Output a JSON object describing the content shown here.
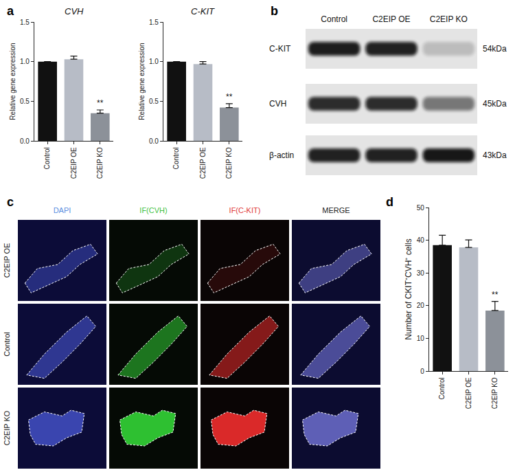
{
  "panel_labels": [
    "a",
    "b",
    "c",
    "d"
  ],
  "chart_data": [
    {
      "type": "bar",
      "title": "CVH",
      "ylabel": "Relative gene expression",
      "categories": [
        "Control",
        "C2EIP OE",
        "C2EIP KO"
      ],
      "values": [
        1.0,
        1.03,
        0.35
      ],
      "errors": [
        0,
        0.04,
        0.04
      ],
      "colors": [
        "#111111",
        "#b7bcc6",
        "#8c9199"
      ],
      "ylim": [
        0,
        1.5
      ],
      "yticks": [
        {
          "value": 0,
          "label": "0.0"
        },
        {
          "value": 0.5,
          "label": "0.5"
        },
        {
          "value": 1,
          "label": "1.0"
        },
        {
          "value": 1.5,
          "label": "1.5"
        }
      ],
      "grid": false,
      "annotations": [
        {
          "category": "C2EIP KO",
          "text": "**"
        }
      ]
    },
    {
      "type": "bar",
      "title": "C-KIT",
      "ylabel": "Relative gene expression",
      "categories": [
        "Control",
        "C2EIP OE",
        "C2EIP KO"
      ],
      "values": [
        1.0,
        0.97,
        0.42
      ],
      "errors": [
        0,
        0.03,
        0.05
      ],
      "colors": [
        "#111111",
        "#b7bcc6",
        "#8c9199"
      ],
      "ylim": [
        0,
        1.5
      ],
      "yticks": [
        {
          "value": 0,
          "label": "0.0"
        },
        {
          "value": 0.5,
          "label": "0.5"
        },
        {
          "value": 1,
          "label": "1.0"
        },
        {
          "value": 1.5,
          "label": "1.5"
        }
      ],
      "grid": false,
      "annotations": [
        {
          "category": "C2EIP KO",
          "text": "**"
        }
      ]
    },
    {
      "type": "bar",
      "ylabel": "Number of CKIT⁺CVH⁺ cells",
      "categories": [
        "Control",
        "C2EIP OE",
        "C2EIP KO"
      ],
      "values": [
        38.5,
        37.8,
        18.5
      ],
      "errors": [
        3.0,
        2.3,
        2.8
      ],
      "colors": [
        "#111111",
        "#b7bcc6",
        "#8c9199"
      ],
      "ylim": [
        0,
        50
      ],
      "yticks": [
        0,
        10,
        20,
        30,
        40,
        50
      ],
      "grid": false,
      "annotations": [
        {
          "category": "C2EIP KO",
          "text": "**"
        }
      ]
    }
  ],
  "western_blot": {
    "lanes": [
      "Control",
      "C2EIP OE",
      "C2EIP KO"
    ],
    "rows": [
      {
        "label": "C-KIT",
        "size": "54kDa"
      },
      {
        "label": "CVH",
        "size": "45kDa"
      },
      {
        "label": "β-actin",
        "size": "43kDa"
      }
    ]
  },
  "immunofluorescence": {
    "channels": [
      {
        "label": "DAPI",
        "color": "#5a8ee0"
      },
      {
        "label": "IF(CVH)",
        "color": "#3fbf3f"
      },
      {
        "label": "IF(C-KIT)",
        "color": "#e03a3a"
      },
      {
        "label": "MERGE",
        "color": "#222222"
      }
    ],
    "rows": [
      "C2EIP OE",
      "Control",
      "C2EIP KO"
    ]
  }
}
